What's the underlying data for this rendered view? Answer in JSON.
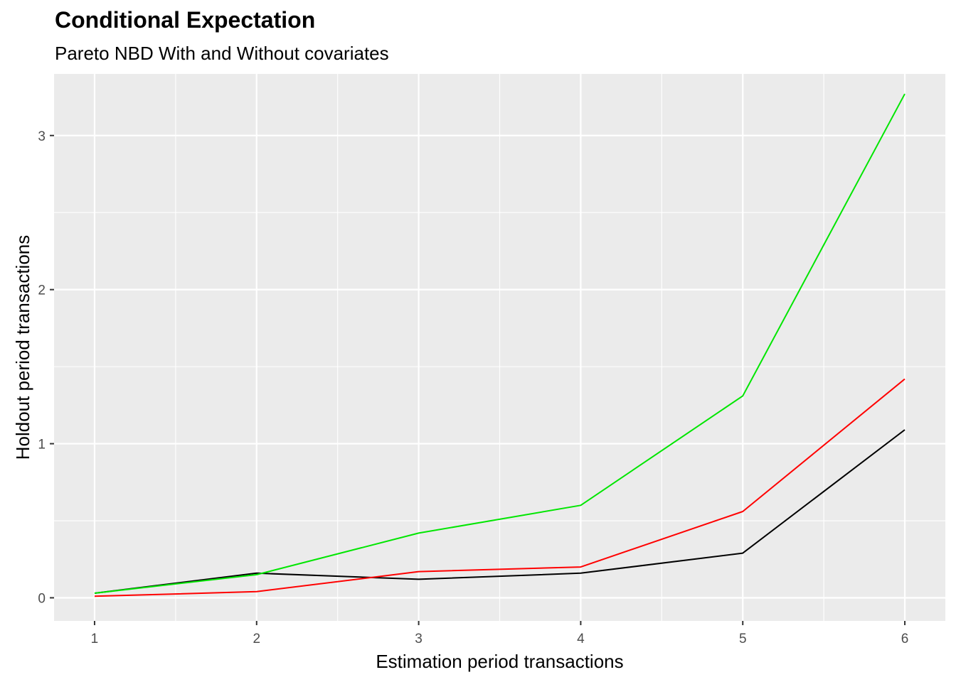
{
  "chart_data": {
    "type": "line",
    "title": "Conditional Expectation",
    "subtitle": "Pareto NBD With and Without covariates",
    "xlabel": "Estimation period transactions",
    "ylabel": "Holdout period transactions",
    "x": [
      1,
      2,
      3,
      4,
      5,
      6
    ],
    "xlim": [
      0.75,
      6.25
    ],
    "ylim": [
      -0.15,
      3.4
    ],
    "x_ticks": [
      1,
      2,
      3,
      4,
      5,
      6
    ],
    "y_ticks": [
      0,
      1,
      2,
      3
    ],
    "x_tick_labels": [
      "1",
      "2",
      "3",
      "4",
      "5",
      "6"
    ],
    "y_tick_labels": [
      "0",
      "1",
      "2",
      "3"
    ],
    "grid": true,
    "legend": "none",
    "background": "#ebebeb",
    "series": [
      {
        "color": "#000000",
        "values": [
          0.03,
          0.16,
          0.12,
          0.16,
          0.29,
          1.09
        ]
      },
      {
        "color": "#ff0000",
        "values": [
          0.01,
          0.04,
          0.17,
          0.2,
          0.56,
          1.42
        ]
      },
      {
        "color": "#00e600",
        "values": [
          0.03,
          0.15,
          0.42,
          0.6,
          1.31,
          3.27
        ]
      }
    ]
  }
}
